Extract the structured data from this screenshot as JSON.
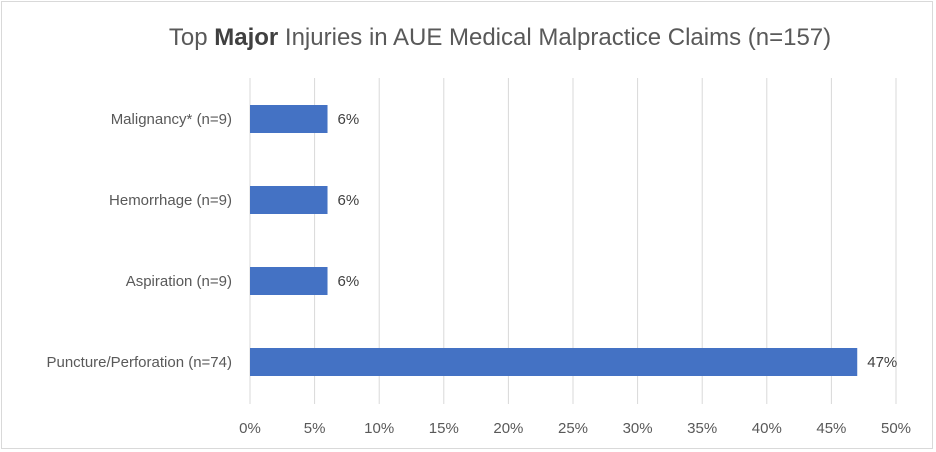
{
  "chart_data": {
    "type": "bar",
    "orientation": "horizontal",
    "title": {
      "prefix": "Top ",
      "bold": "Major",
      "suffix": " Injuries in AUE Medical Malpractice Claims (n=157)"
    },
    "categories": [
      "Malignancy* (n=9)",
      "Hemorrhage (n=9)",
      "Aspiration (n=9)",
      "Puncture/Perforation (n=74)"
    ],
    "values": [
      6,
      6,
      6,
      47
    ],
    "data_labels": [
      "6%",
      "6%",
      "6%",
      "47%"
    ],
    "xlim": [
      0,
      50
    ],
    "xticks": [
      "0%",
      "5%",
      "10%",
      "15%",
      "20%",
      "25%",
      "30%",
      "35%",
      "40%",
      "45%",
      "50%"
    ],
    "grid": "vertical",
    "legend": "none",
    "bar_color": "#4472c4",
    "grid_color": "#d9d9d9"
  }
}
